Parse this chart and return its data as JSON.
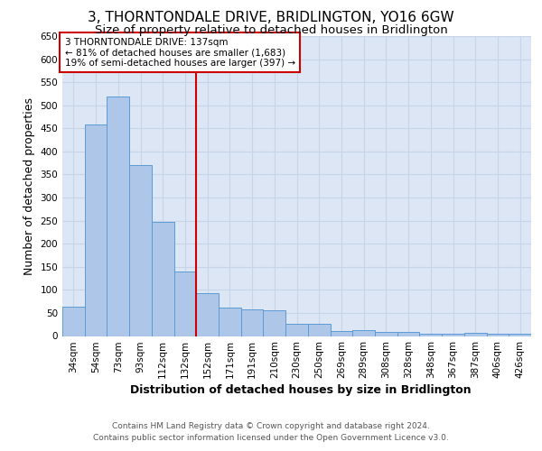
{
  "title": "3, THORNTONDALE DRIVE, BRIDLINGTON, YO16 6GW",
  "subtitle": "Size of property relative to detached houses in Bridlington",
  "xlabel": "Distribution of detached houses by size in Bridlington",
  "ylabel": "Number of detached properties",
  "footer_line1": "Contains HM Land Registry data © Crown copyright and database right 2024.",
  "footer_line2": "Contains public sector information licensed under the Open Government Licence v3.0.",
  "bar_labels": [
    "34sqm",
    "54sqm",
    "73sqm",
    "93sqm",
    "112sqm",
    "132sqm",
    "152sqm",
    "171sqm",
    "191sqm",
    "210sqm",
    "230sqm",
    "250sqm",
    "269sqm",
    "289sqm",
    "308sqm",
    "328sqm",
    "348sqm",
    "367sqm",
    "387sqm",
    "406sqm",
    "426sqm"
  ],
  "bar_values": [
    63,
    458,
    520,
    370,
    248,
    140,
    93,
    62,
    58,
    55,
    27,
    27,
    10,
    12,
    8,
    8,
    5,
    4,
    7,
    4,
    4
  ],
  "bar_color": "#aec6e8",
  "bar_edgecolor": "#5b9bd5",
  "grid_color": "#c8d4e8",
  "background_color": "#dce6f5",
  "vline_x": 5.5,
  "vline_color": "#cc0000",
  "annotation_box_text": "3 THORNTONDALE DRIVE: 137sqm\n← 81% of detached houses are smaller (1,683)\n19% of semi-detached houses are larger (397) →",
  "ylim": [
    0,
    650
  ],
  "yticks": [
    0,
    50,
    100,
    150,
    200,
    250,
    300,
    350,
    400,
    450,
    500,
    550,
    600,
    650
  ],
  "title_fontsize": 11,
  "subtitle_fontsize": 9.5,
  "ylabel_fontsize": 9,
  "xlabel_fontsize": 9,
  "tick_fontsize": 7.5,
  "annot_fontsize": 7.5,
  "footer_fontsize": 6.5
}
